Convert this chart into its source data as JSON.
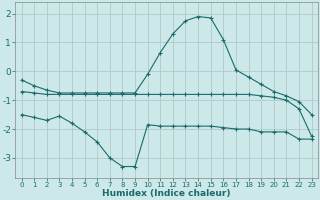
{
  "title": "",
  "xlabel": "Humidex (Indice chaleur)",
  "ylabel": "",
  "bg_color": "#cce8e8",
  "grid_color": "#b0c8c8",
  "line_color": "#1a6b6b",
  "xlim": [
    -0.5,
    23.5
  ],
  "ylim": [
    -3.7,
    2.4
  ],
  "yticks": [
    -3,
    -2,
    -1,
    0,
    1,
    2
  ],
  "xticks": [
    0,
    1,
    2,
    3,
    4,
    5,
    6,
    7,
    8,
    9,
    10,
    11,
    12,
    13,
    14,
    15,
    16,
    17,
    18,
    19,
    20,
    21,
    22,
    23
  ],
  "line1_x": [
    0,
    1,
    2,
    3,
    4,
    5,
    6,
    7,
    8,
    9,
    10,
    11,
    12,
    13,
    14,
    15,
    16,
    17,
    18,
    19,
    20,
    21,
    22,
    23
  ],
  "line1_y": [
    -0.3,
    -0.5,
    -0.65,
    -0.75,
    -0.75,
    -0.75,
    -0.75,
    -0.75,
    -0.75,
    -0.75,
    -0.1,
    0.65,
    1.3,
    1.75,
    1.9,
    1.85,
    1.1,
    0.05,
    -0.2,
    -0.45,
    -0.7,
    -0.85,
    -1.05,
    -1.5
  ],
  "line2_x": [
    0,
    1,
    2,
    3,
    4,
    5,
    6,
    7,
    8,
    9,
    10,
    11,
    12,
    13,
    14,
    15,
    16,
    17,
    18,
    19,
    20,
    21,
    22,
    23
  ],
  "line2_y": [
    -0.7,
    -0.75,
    -0.8,
    -0.8,
    -0.8,
    -0.8,
    -0.8,
    -0.8,
    -0.8,
    -0.8,
    -0.8,
    -0.8,
    -0.8,
    -0.8,
    -0.8,
    -0.8,
    -0.8,
    -0.8,
    -0.8,
    -0.85,
    -0.9,
    -1.0,
    -1.3,
    -2.25
  ],
  "line3_x": [
    0,
    1,
    2,
    3,
    4,
    5,
    6,
    7,
    8,
    9,
    10,
    11,
    12,
    13,
    14,
    15,
    16,
    17,
    18,
    19,
    20,
    21,
    22,
    23
  ],
  "line3_y": [
    -1.5,
    -1.6,
    -1.7,
    -1.55,
    -1.8,
    -2.1,
    -2.45,
    -3.0,
    -3.3,
    -3.3,
    -1.85,
    -1.9,
    -1.9,
    -1.9,
    -1.9,
    -1.9,
    -1.95,
    -2.0,
    -2.0,
    -2.1,
    -2.1,
    -2.1,
    -2.35,
    -2.35
  ]
}
